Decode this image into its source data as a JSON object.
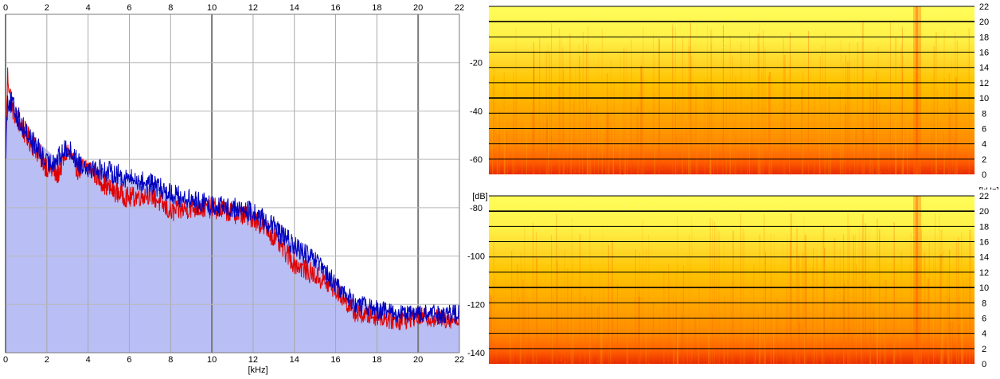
{
  "chart_data": [
    {
      "type": "area",
      "xlabel": "[kHz]",
      "ylabel": "[dB]",
      "xlim": [
        0,
        22
      ],
      "ylim": [
        -140,
        0
      ],
      "x_ticks": [
        "0",
        "2",
        "4",
        "6",
        "8",
        "10",
        "12",
        "14",
        "16",
        "18",
        "20",
        "22"
      ],
      "y_ticks": [
        "-20",
        "-40",
        "-60",
        "-80",
        "-100",
        "-120",
        "-140"
      ],
      "grid": true,
      "fill_series": {
        "color": "#b9bef5",
        "x": [
          0,
          0.1,
          0.3,
          0.5,
          1,
          1.5,
          2,
          2.5,
          3,
          3.5,
          4,
          5,
          6,
          7,
          8,
          9,
          10,
          11,
          12,
          13,
          14,
          15,
          16,
          17,
          18,
          19,
          20,
          21,
          22
        ],
        "values": [
          -60,
          -38,
          -40,
          -43,
          -48,
          -52,
          -56,
          -60,
          -58,
          -61,
          -62,
          -66,
          -69,
          -71,
          -74,
          -77,
          -79,
          -80,
          -82,
          -88,
          -96,
          -102,
          -110,
          -119,
          -121,
          -123,
          -124,
          -125,
          -125
        ]
      },
      "series": [
        {
          "color": "#e00000",
          "x": [
            0,
            0.1,
            0.3,
            0.5,
            1,
            1.5,
            2,
            2.5,
            3,
            3.5,
            4,
            5,
            6,
            7,
            8,
            9,
            10,
            11,
            12,
            13,
            14,
            15,
            16,
            17,
            18,
            19,
            20,
            21,
            22
          ],
          "values": [
            -60,
            -25,
            -38,
            -42,
            -50,
            -56,
            -63,
            -67,
            -56,
            -64,
            -63,
            -72,
            -76,
            -74,
            -82,
            -80,
            -80,
            -82,
            -84,
            -92,
            -103,
            -108,
            -114,
            -124,
            -125,
            -127,
            -125,
            -126,
            -126
          ]
        },
        {
          "color": "#0000c0",
          "x": [
            0,
            0.1,
            0.3,
            0.5,
            1,
            1.5,
            2,
            2.5,
            3,
            3.5,
            4,
            5,
            6,
            7,
            8,
            9,
            10,
            11,
            12,
            13,
            14,
            15,
            16,
            17,
            18,
            19,
            20,
            21,
            22
          ],
          "values": [
            -60,
            -35,
            -37,
            -41,
            -49,
            -55,
            -62,
            -60,
            -55,
            -61,
            -63,
            -65,
            -68,
            -70,
            -74,
            -77,
            -79,
            -80,
            -82,
            -88,
            -96,
            -102,
            -112,
            -120,
            -122,
            -124,
            -124,
            -124,
            -124
          ]
        }
      ]
    },
    {
      "type": "heatmap",
      "ylabel": "[kHz]",
      "y_ticks": [
        "22",
        "20",
        "18",
        "16",
        "14",
        "12",
        "10",
        "8",
        "6",
        "4",
        "2",
        "0"
      ],
      "ylim": [
        0,
        22
      ],
      "colors": [
        "#fffd48",
        "#ffd600",
        "#ff9a00",
        "#ff5a00",
        "#e63000"
      ]
    },
    {
      "type": "heatmap",
      "y_ticks": [
        "22",
        "20",
        "18",
        "16",
        "14",
        "12",
        "10",
        "8",
        "6",
        "4",
        "2",
        "0"
      ],
      "ylim": [
        0,
        22
      ],
      "colors": [
        "#fffd48",
        "#ffd600",
        "#ff9a00",
        "#ff5a00",
        "#e63000"
      ]
    }
  ]
}
